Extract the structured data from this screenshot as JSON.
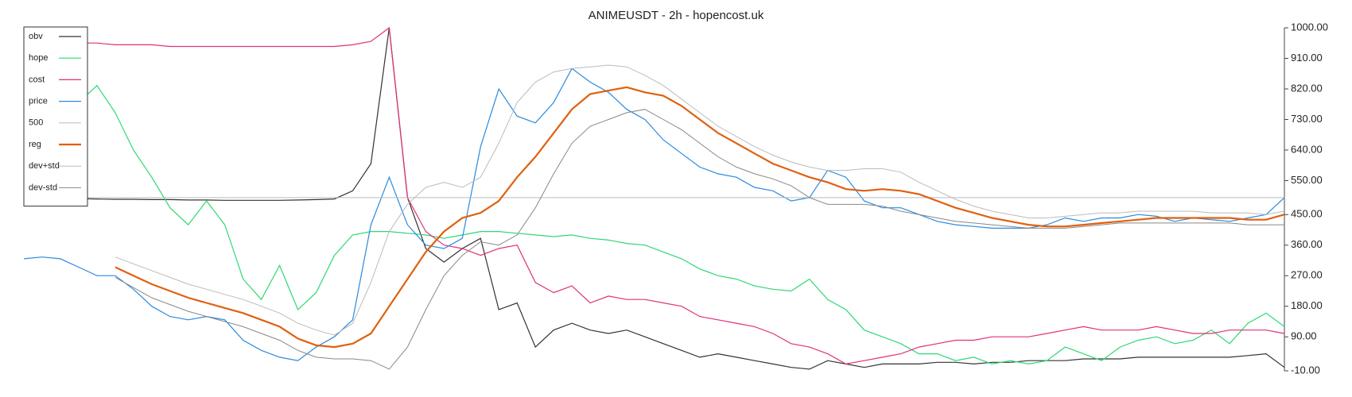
{
  "chart_data": {
    "type": "line",
    "title": "ANIMEUSDT - 2h - hopencost.uk",
    "ylim": [
      -10,
      1000
    ],
    "yticks": [
      {
        "value": -10,
        "label": "-10.00"
      },
      {
        "value": 90,
        "label": "90.00"
      },
      {
        "value": 180,
        "label": "180.00"
      },
      {
        "value": 270,
        "label": "270.00"
      },
      {
        "value": 360,
        "label": "360.00"
      },
      {
        "value": 450,
        "label": "450.00"
      },
      {
        "value": 550,
        "label": "550.00"
      },
      {
        "value": 640,
        "label": "640.00"
      },
      {
        "value": 730,
        "label": "730.00"
      },
      {
        "value": 820,
        "label": "820.00"
      },
      {
        "value": 910,
        "label": "910.00"
      },
      {
        "value": 1000,
        "label": "1000.00"
      }
    ],
    "legend": "upper left",
    "series": [
      {
        "name": "obv",
        "color": "#333333",
        "width": 1.2,
        "values": [
          500,
          500,
          498,
          497,
          496,
          495,
          495,
          494,
          494,
          493,
          493,
          492,
          492,
          492,
          492,
          493,
          494,
          496,
          520,
          600,
          1000,
          500,
          350,
          310,
          350,
          380,
          170,
          190,
          60,
          110,
          130,
          110,
          100,
          110,
          90,
          70,
          50,
          30,
          40,
          30,
          20,
          10,
          0,
          -5,
          20,
          10,
          0,
          10,
          10,
          10,
          15,
          15,
          10,
          15,
          15,
          20,
          20,
          20,
          25,
          25,
          25,
          30,
          30,
          30,
          30,
          30,
          30,
          35,
          40,
          0
        ]
      },
      {
        "name": "hope",
        "color": "#2ed873",
        "width": 1.2,
        "values": [
          850,
          830,
          800,
          780,
          830,
          750,
          640,
          560,
          470,
          420,
          490,
          420,
          260,
          200,
          300,
          170,
          220,
          330,
          390,
          400,
          400,
          395,
          390,
          380,
          390,
          400,
          400,
          395,
          390,
          385,
          390,
          380,
          375,
          365,
          360,
          340,
          320,
          290,
          270,
          260,
          240,
          230,
          225,
          260,
          200,
          170,
          110,
          90,
          70,
          40,
          40,
          20,
          30,
          10,
          20,
          10,
          20,
          60,
          40,
          20,
          60,
          80,
          90,
          70,
          80,
          110,
          70,
          130,
          160,
          120
        ]
      },
      {
        "name": "cost",
        "color": "#e0307a",
        "width": 1.2,
        "values": [
          980,
          970,
          960,
          955,
          955,
          950,
          950,
          950,
          945,
          945,
          945,
          945,
          945,
          945,
          945,
          945,
          945,
          945,
          950,
          960,
          1000,
          500,
          400,
          360,
          350,
          330,
          350,
          360,
          250,
          220,
          240,
          190,
          210,
          200,
          200,
          190,
          180,
          150,
          140,
          130,
          120,
          100,
          70,
          60,
          40,
          10,
          20,
          30,
          40,
          60,
          70,
          80,
          80,
          90,
          90,
          90,
          100,
          110,
          120,
          110,
          110,
          110,
          120,
          110,
          100,
          100,
          110,
          110,
          110,
          100
        ]
      },
      {
        "name": "price",
        "color": "#2a8ae0",
        "width": 1.2,
        "values": [
          320,
          325,
          320,
          295,
          270,
          270,
          230,
          180,
          150,
          140,
          150,
          140,
          80,
          50,
          30,
          20,
          60,
          90,
          140,
          420,
          560,
          420,
          360,
          350,
          380,
          650,
          820,
          740,
          720,
          780,
          880,
          840,
          810,
          760,
          730,
          670,
          630,
          590,
          570,
          560,
          530,
          520,
          490,
          500,
          580,
          560,
          490,
          470,
          470,
          450,
          430,
          420,
          415,
          410,
          410,
          410,
          420,
          440,
          430,
          440,
          440,
          450,
          445,
          430,
          440,
          435,
          430,
          440,
          450,
          500
        ]
      },
      {
        "name": "500",
        "color": "#bbbbbb",
        "width": 1,
        "values": [
          500,
          500,
          500,
          500,
          500,
          500,
          500,
          500,
          500,
          500,
          500,
          500,
          500,
          500,
          500,
          500,
          500,
          500,
          500,
          500,
          500,
          500,
          500,
          500,
          500,
          500,
          500,
          500,
          500,
          500,
          500,
          500,
          500,
          500,
          500,
          500,
          500,
          500,
          500,
          500,
          500,
          500,
          500,
          500,
          500,
          500,
          500,
          500,
          500,
          500,
          500,
          500,
          500,
          500,
          500,
          500,
          500,
          500,
          500,
          500,
          500,
          500,
          500,
          500,
          500,
          500,
          500,
          500,
          500,
          500
        ]
      },
      {
        "name": "reg",
        "color": "#e0600f",
        "width": 2.2,
        "values": [
          null,
          null,
          null,
          null,
          null,
          295,
          270,
          245,
          225,
          205,
          190,
          175,
          160,
          140,
          120,
          85,
          65,
          60,
          70,
          100,
          180,
          260,
          340,
          400,
          440,
          455,
          490,
          560,
          620,
          690,
          760,
          805,
          815,
          825,
          810,
          800,
          770,
          730,
          690,
          660,
          630,
          600,
          580,
          560,
          545,
          525,
          520,
          525,
          520,
          510,
          490,
          470,
          455,
          440,
          430,
          420,
          415,
          415,
          420,
          425,
          430,
          435,
          440,
          440,
          440,
          440,
          440,
          435,
          435,
          450
        ]
      },
      {
        "name": "dev+std",
        "color": "#bbbbbb",
        "width": 1,
        "values": [
          null,
          null,
          null,
          null,
          null,
          325,
          305,
          285,
          265,
          245,
          230,
          215,
          200,
          180,
          160,
          130,
          110,
          95,
          130,
          250,
          400,
          480,
          530,
          545,
          530,
          560,
          660,
          780,
          840,
          870,
          880,
          885,
          890,
          885,
          860,
          830,
          790,
          750,
          710,
          680,
          650,
          625,
          605,
          590,
          580,
          580,
          585,
          585,
          575,
          545,
          520,
          495,
          475,
          460,
          450,
          440,
          440,
          445,
          450,
          455,
          455,
          460,
          460,
          460,
          460,
          455,
          455,
          455,
          450,
          460
        ]
      },
      {
        "name": "dev-std",
        "color": "#888888",
        "width": 1,
        "values": [
          null,
          null,
          null,
          null,
          null,
          265,
          235,
          205,
          185,
          165,
          150,
          135,
          120,
          100,
          80,
          50,
          30,
          25,
          25,
          20,
          -5,
          60,
          170,
          270,
          330,
          370,
          360,
          390,
          470,
          570,
          660,
          710,
          730,
          750,
          760,
          730,
          700,
          660,
          620,
          590,
          570,
          555,
          535,
          500,
          480,
          480,
          480,
          475,
          460,
          450,
          440,
          430,
          425,
          420,
          415,
          410,
          410,
          410,
          415,
          420,
          425,
          425,
          425,
          425,
          425,
          425,
          425,
          420,
          420,
          420
        ]
      }
    ]
  }
}
